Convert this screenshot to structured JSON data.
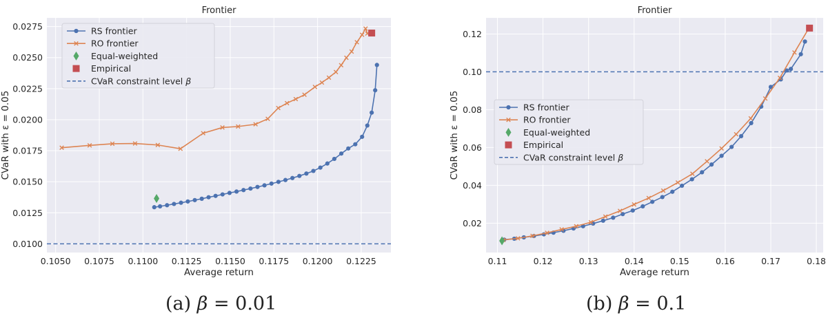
{
  "chart_data": [
    {
      "type": "line",
      "title": "Frontier",
      "xlabel": "Average return",
      "ylabel": "CVaR with ε = 0.05",
      "xlim": [
        0.1045,
        0.1242
      ],
      "ylim": [
        0.0093,
        0.0282
      ],
      "xticks": [
        "0.1050",
        "0.1075",
        "0.1100",
        "0.1125",
        "0.1150",
        "0.1175",
        "0.1200",
        "0.1225"
      ],
      "xtick_values": [
        0.105,
        0.1075,
        0.11,
        0.1125,
        0.115,
        0.1175,
        0.12,
        0.1225
      ],
      "yticks": [
        "0.0100",
        "0.0125",
        "0.0150",
        "0.0175",
        "0.0200",
        "0.0225",
        "0.0250",
        "0.0275"
      ],
      "ytick_values": [
        0.01,
        0.0125,
        0.015,
        0.0175,
        0.02,
        0.0225,
        0.025,
        0.0275
      ],
      "grid": true,
      "legend_position": "top-left",
      "series": [
        {
          "name": "RS frontier",
          "color": "#4c72b0",
          "marker": "circle",
          "x": [
            0.11065,
            0.11098,
            0.11138,
            0.11178,
            0.11218,
            0.11257,
            0.11297,
            0.11337,
            0.11376,
            0.11416,
            0.11456,
            0.11496,
            0.11536,
            0.11576,
            0.11616,
            0.11656,
            0.11696,
            0.11736,
            0.11776,
            0.11816,
            0.11856,
            0.11896,
            0.11936,
            0.11976,
            0.12016,
            0.12056,
            0.12096,
            0.12136,
            0.12176,
            0.12216,
            0.12255,
            0.12285,
            0.1231,
            0.1233,
            0.1234
          ],
          "y": [
            0.01295,
            0.01302,
            0.01311,
            0.01321,
            0.01331,
            0.01341,
            0.01352,
            0.01363,
            0.01375,
            0.01386,
            0.01398,
            0.0141,
            0.01421,
            0.01433,
            0.01445,
            0.01458,
            0.01471,
            0.01485,
            0.01499,
            0.01514,
            0.0153,
            0.01547,
            0.01566,
            0.01587,
            0.01614,
            0.01647,
            0.01684,
            0.01727,
            0.01768,
            0.01802,
            0.01862,
            0.01953,
            0.02057,
            0.02237,
            0.02441
          ]
        },
        {
          "name": "RO frontier",
          "color": "#dd8452",
          "marker": "x",
          "x": [
            0.10535,
            0.10695,
            0.10825,
            0.10955,
            0.11085,
            0.11215,
            0.11345,
            0.11455,
            0.11545,
            0.11645,
            0.11715,
            0.11775,
            0.11825,
            0.11875,
            0.11925,
            0.11985,
            0.12025,
            0.12065,
            0.12105,
            0.12135,
            0.12165,
            0.12195,
            0.12225,
            0.12255,
            0.12275,
            0.12285
          ],
          "y": [
            0.01774,
            0.01793,
            0.01806,
            0.01808,
            0.01796,
            0.01766,
            0.01891,
            0.01937,
            0.01945,
            0.01963,
            0.02007,
            0.02094,
            0.02133,
            0.02166,
            0.02201,
            0.02264,
            0.02299,
            0.02339,
            0.02384,
            0.02439,
            0.02499,
            0.02549,
            0.02624,
            0.02684,
            0.02734,
            0.02694
          ]
        }
      ],
      "points": [
        {
          "name": "Equal-weighted",
          "color": "#55a868",
          "marker": "diamond",
          "x": 0.11078,
          "y": 0.01365
        },
        {
          "name": "Empirical",
          "color": "#c44e52",
          "marker": "square",
          "x": 0.1231,
          "y": 0.02698
        }
      ],
      "hlines": [
        {
          "name": "CVaR constraint level β",
          "color": "#4c72b0",
          "style": "dashed",
          "y": 0.01
        }
      ]
    },
    {
      "type": "line",
      "title": "Frontier",
      "xlabel": "Average return",
      "ylabel": "CVaR with ε = 0.05",
      "xlim": [
        0.1075,
        0.1815
      ],
      "ylim": [
        0.0045,
        0.1285
      ],
      "xticks": [
        "0.11",
        "0.12",
        "0.13",
        "0.14",
        "0.15",
        "0.16",
        "0.17",
        "0.18"
      ],
      "xtick_values": [
        0.11,
        0.12,
        0.13,
        0.14,
        0.15,
        0.16,
        0.17,
        0.18
      ],
      "yticks": [
        "0.02",
        "0.04",
        "0.06",
        "0.08",
        "0.10",
        "0.12"
      ],
      "ytick_values": [
        0.02,
        0.04,
        0.06,
        0.08,
        0.1,
        0.12
      ],
      "grid": true,
      "legend_position": "center-left",
      "series": [
        {
          "name": "RS frontier",
          "color": "#4c72b0",
          "marker": "circle",
          "x": [
            0.1115,
            0.1137,
            0.1158,
            0.118,
            0.1202,
            0.1223,
            0.1245,
            0.1267,
            0.1288,
            0.131,
            0.1332,
            0.1354,
            0.1375,
            0.1397,
            0.1419,
            0.144,
            0.1462,
            0.1484,
            0.1505,
            0.1527,
            0.1549,
            0.157,
            0.1592,
            0.1614,
            0.1635,
            0.1657,
            0.1679,
            0.17,
            0.1722,
            0.1735,
            0.1744,
            0.1766,
            0.1775
          ],
          "y": [
            0.0113,
            0.0118,
            0.0125,
            0.0132,
            0.0141,
            0.015,
            0.016,
            0.0172,
            0.0184,
            0.0198,
            0.0213,
            0.0229,
            0.0248,
            0.0267,
            0.0289,
            0.0313,
            0.0338,
            0.0366,
            0.0398,
            0.0432,
            0.0469,
            0.051,
            0.0556,
            0.0603,
            0.066,
            0.0729,
            0.0816,
            0.092,
            0.096,
            0.1007,
            0.1015,
            0.1093,
            0.116
          ]
        },
        {
          "name": "RO frontier",
          "color": "#dd8452",
          "marker": "x",
          "x": [
            0.1113,
            0.1145,
            0.1177,
            0.1209,
            0.1241,
            0.1273,
            0.1305,
            0.1337,
            0.1369,
            0.14,
            0.1432,
            0.1464,
            0.1496,
            0.1528,
            0.156,
            0.1592,
            0.1624,
            0.1656,
            0.1688,
            0.172,
            0.1752,
            0.1784
          ],
          "y": [
            0.0111,
            0.012,
            0.0133,
            0.0149,
            0.0167,
            0.0184,
            0.0205,
            0.0235,
            0.0265,
            0.0299,
            0.0333,
            0.0372,
            0.0415,
            0.0461,
            0.0527,
            0.0595,
            0.067,
            0.0754,
            0.0859,
            0.0968,
            0.1102,
            0.1232
          ]
        }
      ],
      "points": [
        {
          "name": "Equal-weighted",
          "color": "#55a868",
          "marker": "diamond",
          "x": 0.111,
          "y": 0.0107
        },
        {
          "name": "Empirical",
          "color": "#c44e52",
          "marker": "square",
          "x": 0.1785,
          "y": 0.1231
        }
      ],
      "hlines": [
        {
          "name": "CVaR constraint level β",
          "color": "#4c72b0",
          "style": "dashed",
          "y": 0.1
        }
      ]
    }
  ],
  "captions": [
    {
      "label": "(a)",
      "var": "β",
      "eq": " = 0.01"
    },
    {
      "label": "(b)",
      "var": "β",
      "eq": " = 0.1"
    }
  ]
}
